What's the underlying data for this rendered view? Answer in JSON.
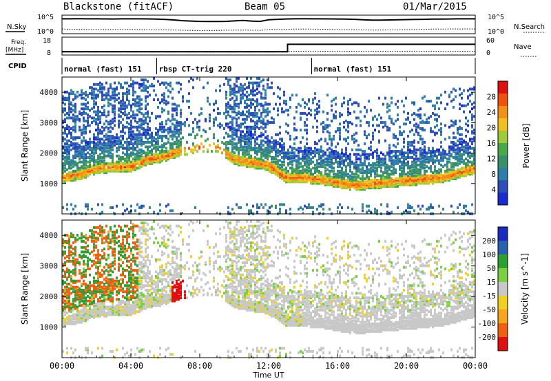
{
  "header": {
    "station": "Blackstone (fitACF)",
    "beam": "Beam 05",
    "date": "01/Mar/2015"
  },
  "chart_data": [
    {
      "type": "line",
      "name": "nsky-nsearch-strip",
      "ylabel_left": "N.Sky",
      "ylabel_right": "N.Search",
      "tick_labels_left": [
        "10^5",
        "10^0"
      ],
      "tick_labels_right": [
        "10^5",
        "10^0"
      ],
      "x_hours": [
        0,
        0.5,
        1,
        1.5,
        2,
        2.5,
        3,
        3.5,
        4,
        4.5,
        5,
        5.5,
        6,
        6.5,
        7,
        7.5,
        8,
        8.5,
        9,
        9.5,
        10,
        10.5,
        11,
        11.5,
        12,
        12.5,
        13,
        13.5,
        14,
        14.5,
        15,
        15.5,
        16,
        16.5,
        17,
        17.5,
        18,
        18.5,
        19,
        19.5,
        20,
        20.5,
        21,
        21.5,
        22,
        22.5,
        23,
        23.5,
        24
      ],
      "nsky_log10": [
        4.7,
        4.7,
        4.72,
        4.7,
        4.7,
        4.68,
        4.66,
        4.7,
        4.7,
        4.7,
        4.68,
        4.6,
        4.5,
        4.35,
        4.1,
        4.0,
        3.9,
        3.85,
        3.85,
        3.9,
        4.05,
        4.2,
        4.0,
        3.9,
        4.4,
        4.55,
        4.65,
        4.7,
        4.72,
        4.7,
        4.7,
        4.68,
        4.65,
        4.6,
        4.55,
        4.4,
        4.3,
        4.3,
        4.35,
        4.4,
        4.45,
        4.5,
        4.55,
        4.6,
        4.62,
        4.65,
        4.7,
        4.7,
        4.7
      ],
      "nsearch_log10": [
        1.5,
        1.4,
        1.4,
        1.35,
        1.3,
        1.3,
        1.3,
        1.35,
        1.35,
        1.3,
        1.3,
        1.25,
        1.2,
        1.15,
        1.1,
        1.05,
        1.0,
        1.0,
        1.05,
        1.1,
        1.1,
        1.15,
        1.1,
        1.05,
        1.3,
        1.35,
        1.4,
        1.45,
        1.45,
        1.45,
        1.4,
        1.4,
        1.35,
        1.3,
        1.25,
        1.2,
        1.15,
        1.15,
        1.2,
        1.25,
        1.3,
        1.35,
        1.4,
        1.45,
        1.45,
        1.5,
        1.5,
        1.5,
        1.5
      ]
    },
    {
      "type": "line",
      "name": "freq-nave-strip",
      "ylabel_left": "Freq.",
      "ylabel_left_unit": "[MHz]",
      "ylabel_right": "Nave",
      "tick_labels_left": [
        "18",
        "8"
      ],
      "tick_labels_right": [
        "60",
        "0"
      ],
      "freq_mhz": [
        {
          "t": 0,
          "v": 9.9
        },
        {
          "t": 13.1,
          "v": 9.9
        },
        {
          "t": 13.1,
          "v": 15.3
        },
        {
          "t": 24,
          "v": 15.3
        }
      ],
      "nave_level": 13,
      "cpid_label": "CPID",
      "cpid_segments": [
        {
          "start": 0,
          "end": 5.5,
          "label": "normal (fast) 151"
        },
        {
          "start": 5.5,
          "end": 14.5,
          "label": "rbsp CT-trig 220"
        },
        {
          "start": 14.5,
          "end": 24,
          "label": "normal (fast) 151"
        }
      ]
    },
    {
      "type": "heatmap",
      "name": "power-panel",
      "ylabel": "Slant Range [km]",
      "ylim": [
        0,
        4500
      ],
      "y_ticks": [
        1000,
        2000,
        3000,
        4000
      ],
      "colorbar_label": "Power [dB]",
      "colorbar_range": [
        0,
        32
      ],
      "colorbar_ticks": [
        4,
        8,
        12,
        16,
        20,
        24,
        28
      ],
      "x_hours": [
        0,
        1,
        2,
        3,
        4,
        5,
        6,
        7,
        8,
        9,
        10,
        11,
        12,
        13,
        14,
        15,
        16,
        17,
        18,
        19,
        20,
        21,
        22,
        23,
        24
      ],
      "main_band_range_km": [
        1200,
        1300,
        1500,
        1550,
        1550,
        1800,
        1900,
        2100,
        2200,
        2200,
        1800,
        1700,
        1600,
        1200,
        1200,
        1150,
        1050,
        950,
        1000,
        1050,
        1100,
        1150,
        1200,
        1350,
        1500
      ]
    },
    {
      "type": "heatmap",
      "name": "velocity-panel",
      "ylabel": "Slant Range [km]",
      "ylim": [
        0,
        4500
      ],
      "y_ticks": [
        1000,
        2000,
        3000,
        4000
      ],
      "colorbar_label": "Velocity [m s^-1]",
      "colorbar_range": [
        -250,
        250
      ],
      "colorbar_ticks": [
        "200",
        "100",
        "50",
        "15",
        "-15",
        "-50",
        "-100",
        "-200"
      ],
      "xlabel": "Time UT",
      "x_ticks": [
        "00:00",
        "04:00",
        "08:00",
        "12:00",
        "16:00",
        "20:00",
        "00:00"
      ]
    }
  ]
}
